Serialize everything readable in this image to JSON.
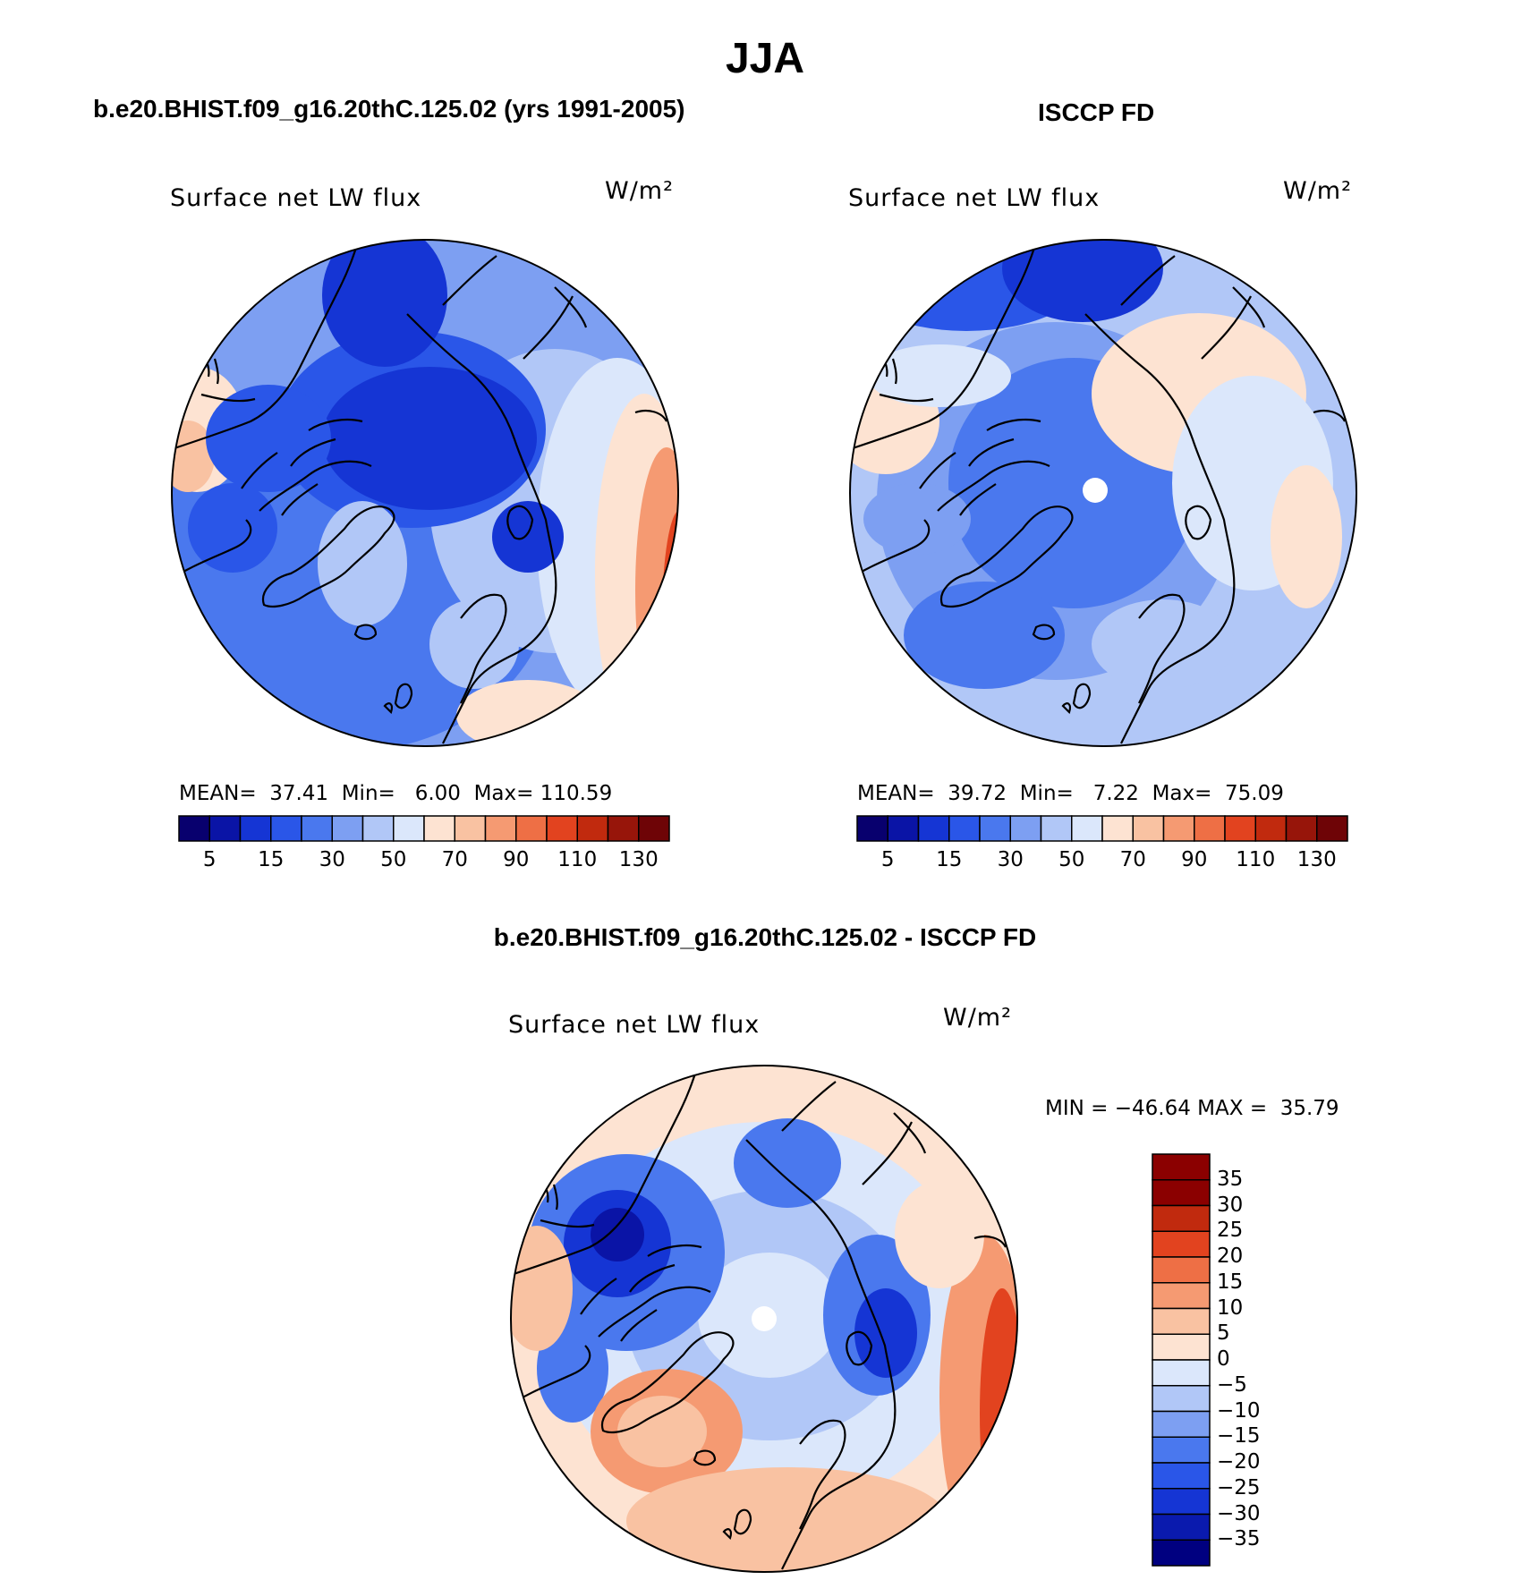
{
  "figure": {
    "season": "JJA",
    "left_title": "b.e20.BHIST.f09_g16.20thC.125.02 (yrs 1991-2005)",
    "right_title": "ISCCP FD",
    "diff_title": "b.e20.BHIST.f09_g16.20thC.125.02 - ISCCP FD"
  },
  "colors": {
    "seq_palette": [
      "#08006e",
      "#0a14a6",
      "#1535d4",
      "#2a56e8",
      "#4a78ee",
      "#7d9ff2",
      "#b1c7f7",
      "#dbe7fb",
      "#fde3d2",
      "#f9c2a2",
      "#f59a72",
      "#ee6f45",
      "#e2431f",
      "#c12a0e",
      "#97150a",
      "#6e0406"
    ],
    "div_palette": [
      "#000080",
      "#0a1aae",
      "#1535d4",
      "#2a56e8",
      "#4a78ee",
      "#7d9ff2",
      "#b1c7f7",
      "#dbe7fb",
      "#fde3d2",
      "#f9c2a2",
      "#f59a72",
      "#ee6f45",
      "#e2431f",
      "#c12a0e",
      "#8b0000"
    ]
  },
  "panels": [
    {
      "id": "model",
      "variable": "Surface net LW flux",
      "units": "W/m²",
      "mean_label": "MEAN=",
      "mean": "37.41",
      "min_label": "Min=",
      "min": "6.00",
      "max_label": "Max=",
      "max": "110.59",
      "colorbar_ticks": [
        "5",
        "15",
        "30",
        "50",
        "70",
        "90",
        "110",
        "130"
      ]
    },
    {
      "id": "obs",
      "variable": "Surface net LW flux",
      "units": "W/m²",
      "mean_label": "MEAN=",
      "mean": "39.72",
      "min_label": "Min=",
      "min": "7.22",
      "max_label": "Max=",
      "max": "75.09",
      "colorbar_ticks": [
        "5",
        "15",
        "30",
        "50",
        "70",
        "90",
        "110",
        "130"
      ]
    },
    {
      "id": "diff",
      "variable": "Surface net LW flux",
      "units": "W/m²",
      "min_label": "MIN =",
      "min": "−46.64",
      "max_label": "MAX =",
      "max": "35.79",
      "colorbar_ticks": [
        "35",
        "30",
        "25",
        "20",
        "15",
        "10",
        "5",
        "0",
        "−5",
        "−10",
        "−15",
        "−20",
        "−25",
        "−30",
        "−35"
      ]
    }
  ]
}
